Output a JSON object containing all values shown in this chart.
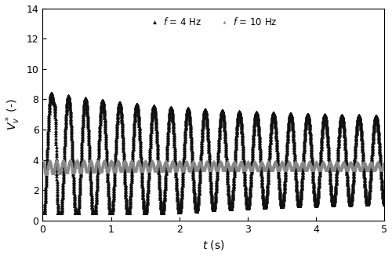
{
  "xlim": [
    0,
    5
  ],
  "ylim": [
    0,
    14
  ],
  "xticks": [
    0,
    1,
    2,
    3,
    4,
    5
  ],
  "yticks": [
    0,
    2,
    4,
    6,
    8,
    10,
    12,
    14
  ],
  "xlabel": "$t$ (s)",
  "ylabel": "$V_v^*$ (-)",
  "legend_4hz": "$f$ = 4 Hz",
  "legend_10hz": "$f$ = 10 Hz",
  "color_4hz": "#111111",
  "color_10hz": "#888888",
  "figsize": [
    5.0,
    3.26
  ],
  "dpi": 100,
  "f4_freq": 4.0,
  "f10_freq": 10.0,
  "f4_mean": 4.0,
  "f4_amp_init": 4.5,
  "f4_amp_final": 2.7,
  "f4_decay": 0.45,
  "f4_spike_amp": 4.8,
  "f4_spike_t": 0.19,
  "f4_spike_sigma": 0.018,
  "f10_mean": 3.62,
  "f10_amp_init": 0.42,
  "f10_amp_final": 0.22,
  "f10_decay": 0.55,
  "dt": 0.001
}
